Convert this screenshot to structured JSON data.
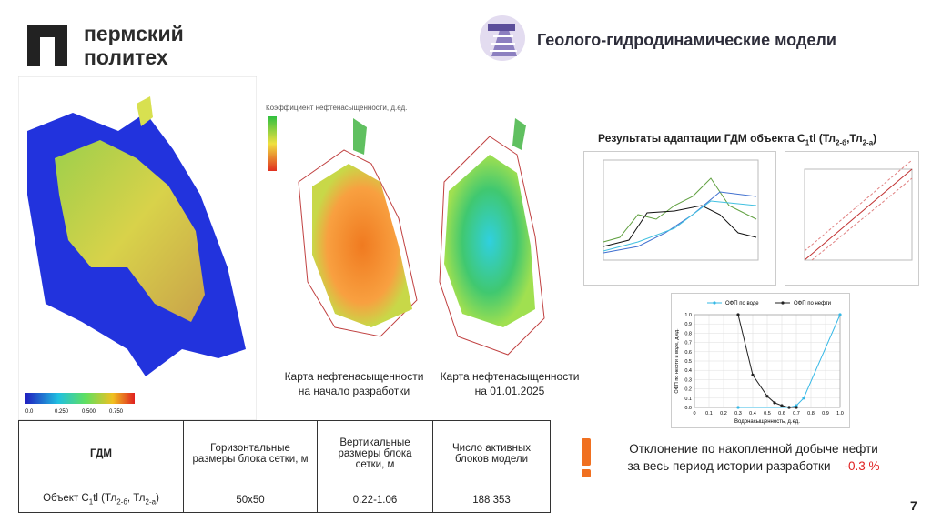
{
  "header": {
    "logo_lines": [
      "пермский",
      "политех"
    ],
    "title": "Геолого-гидродинамические модели"
  },
  "model3d": {
    "colorbar_ticks": [
      "0.0",
      "0.250",
      "0.500",
      "0.750"
    ]
  },
  "maps": {
    "legend_title": "Коэффициент нефтенасыщенности, д.ед.",
    "caption_left": [
      "Карта нефтенасыщенности",
      "на начало разработки"
    ],
    "caption_right": [
      "Карта нефтенасыщенности",
      "на 01.01.2025"
    ]
  },
  "results_title": [
    "Результаты адаптации ГДМ объекта C",
    "1",
    "tl (Тл",
    "2-б",
    ",Тл",
    "2-а",
    ")"
  ],
  "table": {
    "header": [
      "ГДМ",
      "Горизонтальные размеры блока сетки, м",
      "Вертикальные размеры блока сетки, м",
      "Число активных блоков модели"
    ],
    "row": [
      [
        "Объект C",
        "1",
        "tl (Тл",
        "2-б",
        ", Тл",
        "2-а",
        ")"
      ],
      "50x50",
      "0.22-1.06",
      "188 353"
    ]
  },
  "warning": {
    "line1": "Отклонение по накопленной добыче нефти",
    "line2": "за весь период истории разработки –",
    "value": "-0.3 %"
  },
  "page_number": "7",
  "chart_data": {
    "type": "line",
    "xlabel": "Водонасыщенность, д.ед.",
    "ylabel": "ОФП по нефти и воде, д.ед.",
    "xlim": [
      0,
      1
    ],
    "ylim": [
      0,
      1
    ],
    "xticks": [
      0,
      0.1,
      0.2,
      0.3,
      0.4,
      0.5,
      0.6,
      0.7,
      0.8,
      0.9,
      {
        "value": 1,
        "label": "1.0"
      }
    ],
    "yticks": [
      {
        "value": 0,
        "label": "0.0"
      },
      0.1,
      0.2,
      0.3,
      0.4,
      0.5,
      0.6,
      0.7,
      0.8,
      0.9,
      {
        "value": 1,
        "label": "1.0"
      }
    ],
    "grid": true,
    "series": [
      {
        "name": "ОФП по воде",
        "color": "#35b8e6",
        "x": [
          0.3,
          0.65,
          0.7,
          0.75,
          1
        ],
        "values": [
          0,
          0,
          0.02,
          0.1,
          1
        ]
      },
      {
        "name": "ОФП по нефти",
        "color": "#222222",
        "x": [
          0.3,
          0.4,
          0.5,
          0.55,
          0.6,
          0.65,
          0.7
        ],
        "values": [
          1,
          0.35,
          0.12,
          0.05,
          0.02,
          0,
          0
        ]
      }
    ]
  }
}
